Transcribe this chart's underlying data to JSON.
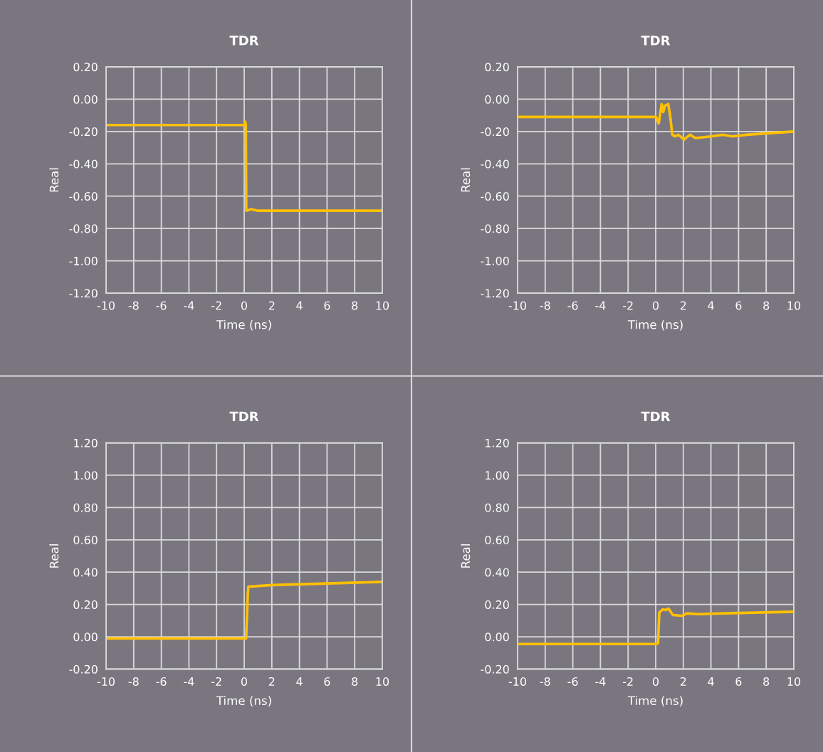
{
  "chart_data": [
    {
      "type": "line",
      "title": "TDR",
      "xlabel": "Time (ns)",
      "ylabel": "Real",
      "grid": true,
      "x": [
        -10,
        0.0,
        0.08,
        0.12,
        0.15,
        0.2,
        0.5,
        1.0,
        10
      ],
      "series": [
        {
          "color": "#ffc000",
          "values": [
            -0.16,
            -0.16,
            -0.14,
            -0.16,
            -0.69,
            -0.69,
            -0.68,
            -0.69,
            -0.69
          ]
        }
      ],
      "xlim": [
        -10,
        10
      ],
      "xticks": [
        -10,
        -8,
        -6,
        -4,
        -2,
        0,
        2,
        4,
        6,
        8,
        10
      ],
      "ylim": [
        -1.2,
        0.2
      ],
      "yticks": [
        {
          "value": -1.2,
          "label": "-1.20"
        },
        {
          "value": -1.0,
          "label": "-1.00"
        },
        {
          "value": -0.8,
          "label": "-0.80"
        },
        {
          "value": -0.6,
          "label": "-0.60"
        },
        {
          "value": -0.4,
          "label": "-0.40"
        },
        {
          "value": -0.2,
          "label": "-0.20"
        },
        {
          "value": 0.0,
          "label": "0.00"
        },
        {
          "value": 0.2,
          "label": "0.20"
        }
      ]
    },
    {
      "type": "line",
      "title": "TDR",
      "xlabel": "Time (ns)",
      "ylabel": "Real",
      "grid": true,
      "x": [
        -10,
        0.03,
        0.22,
        0.43,
        0.55,
        0.67,
        0.9,
        1.03,
        1.2,
        1.4,
        1.64,
        2.05,
        2.48,
        2.88,
        4.0,
        4.86,
        5.55,
        6.6,
        8.3,
        10
      ],
      "series": [
        {
          "color": "#ffc000",
          "values": [
            -0.11,
            -0.11,
            -0.15,
            -0.03,
            -0.08,
            -0.04,
            -0.03,
            -0.09,
            -0.22,
            -0.23,
            -0.22,
            -0.25,
            -0.22,
            -0.24,
            -0.23,
            -0.22,
            -0.23,
            -0.22,
            -0.21,
            -0.2
          ]
        }
      ],
      "xlim": [
        -10,
        10
      ],
      "xticks": [
        -10,
        -8,
        -6,
        -4,
        -2,
        0,
        2,
        4,
        6,
        8,
        10
      ],
      "ylim": [
        -1.2,
        0.2
      ],
      "yticks": [
        {
          "value": -1.2,
          "label": "-1.20"
        },
        {
          "value": -1.0,
          "label": "-1.00"
        },
        {
          "value": -0.8,
          "label": "-0.80"
        },
        {
          "value": -0.6,
          "label": "-0.60"
        },
        {
          "value": -0.4,
          "label": "-0.40"
        },
        {
          "value": -0.2,
          "label": "-0.20"
        },
        {
          "value": 0.0,
          "label": "0.00"
        },
        {
          "value": 0.2,
          "label": "0.20"
        }
      ]
    },
    {
      "type": "line",
      "title": "TDR",
      "xlabel": "Time (ns)",
      "ylabel": "Real",
      "grid": true,
      "x": [
        -10,
        0.14,
        0.26,
        0.3,
        2.0,
        10
      ],
      "series": [
        {
          "color": "#ffc000",
          "values": [
            -0.01,
            -0.01,
            0.26,
            0.31,
            0.32,
            0.34
          ]
        }
      ],
      "xlim": [
        -10,
        10
      ],
      "xticks": [
        -10,
        -8,
        -6,
        -4,
        -2,
        0,
        2,
        4,
        6,
        8,
        10
      ],
      "ylim": [
        -0.2,
        1.2
      ],
      "yticks": [
        {
          "value": -0.2,
          "label": "-0.20"
        },
        {
          "value": 0.0,
          "label": "0.00"
        },
        {
          "value": 0.2,
          "label": "0.20"
        },
        {
          "value": 0.4,
          "label": "0.40"
        },
        {
          "value": 0.6,
          "label": "0.60"
        },
        {
          "value": 0.8,
          "label": "0.80"
        },
        {
          "value": 1.0,
          "label": "1.00"
        },
        {
          "value": 1.2,
          "label": "1.20"
        }
      ]
    },
    {
      "type": "line",
      "title": "TDR",
      "xlabel": "Time (ns)",
      "ylabel": "Real",
      "grid": true,
      "x": [
        -10,
        0.03,
        0.17,
        0.26,
        0.52,
        0.72,
        0.93,
        1.24,
        1.9,
        2.28,
        3.1,
        4.86,
        10
      ],
      "series": [
        {
          "color": "#ffc000",
          "values": [
            -0.045,
            -0.045,
            -0.04,
            0.15,
            0.17,
            0.165,
            0.175,
            0.135,
            0.13,
            0.145,
            0.14,
            0.145,
            0.155
          ]
        }
      ],
      "xlim": [
        -10,
        10
      ],
      "xticks": [
        -10,
        -8,
        -6,
        -4,
        -2,
        0,
        2,
        4,
        6,
        8,
        10
      ],
      "ylim": [
        -0.2,
        1.2
      ],
      "yticks": [
        {
          "value": -0.2,
          "label": "-0.20"
        },
        {
          "value": 0.0,
          "label": "0.00"
        },
        {
          "value": 0.2,
          "label": "0.20"
        },
        {
          "value": 0.4,
          "label": "0.40"
        },
        {
          "value": 0.6,
          "label": "0.60"
        },
        {
          "value": 0.8,
          "label": "0.80"
        },
        {
          "value": 1.0,
          "label": "1.00"
        },
        {
          "value": 1.2,
          "label": "1.20"
        }
      ]
    }
  ]
}
